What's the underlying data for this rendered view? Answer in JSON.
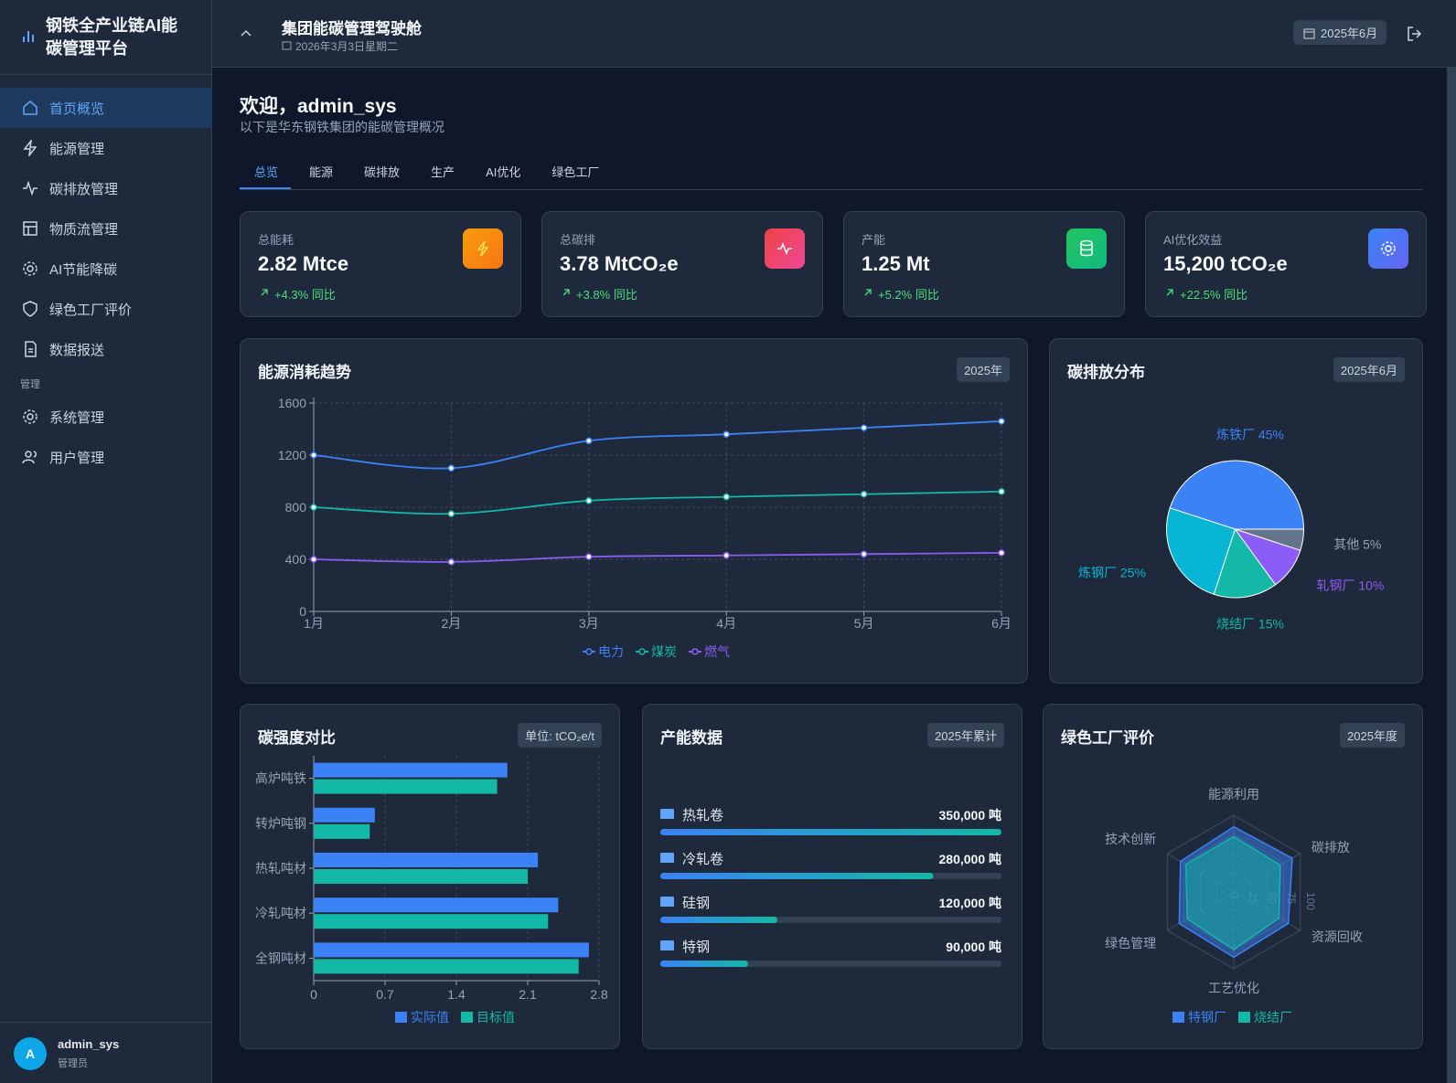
{
  "sidebar": {
    "brand": "钢铁全产业链AI能碳管理平台",
    "nav": [
      "首页概览",
      "能源管理",
      "碳排放管理",
      "物质流管理",
      "AI节能降碳",
      "绿色工厂评价",
      "数据报送"
    ],
    "section": "管理",
    "admin_nav": [
      "系统管理",
      "用户管理"
    ],
    "user": {
      "avatar": "A",
      "name": "admin_sys",
      "role": "管理员"
    }
  },
  "header": {
    "title": "集团能碳管理驾驶舱",
    "date": "2026年3月3日星期二",
    "period": "2025年6月"
  },
  "welcome": {
    "title": "欢迎，admin_sys",
    "subtitle": "以下是华东钢铁集团的能碳管理概况"
  },
  "tabs": [
    "总览",
    "能源",
    "碳排放",
    "生产",
    "AI优化",
    "绿色工厂"
  ],
  "kpis": [
    {
      "label": "总能耗",
      "value": "2.82 Mtce",
      "change": "+4.3% 同比"
    },
    {
      "label": "总碳排",
      "value": "3.78 MtCO₂e",
      "change": "+3.8% 同比"
    },
    {
      "label": "产能",
      "value": "1.25 Mt",
      "change": "+5.2% 同比"
    },
    {
      "label": "AI优化效益",
      "value": "15,200 tCO₂e",
      "change": "+22.5% 同比"
    }
  ],
  "chart_data": [
    {
      "type": "line",
      "title": "能源消耗趋势",
      "badge": "2025年",
      "categories": [
        "1月",
        "2月",
        "3月",
        "4月",
        "5月",
        "6月"
      ],
      "series": [
        {
          "name": "电力",
          "color": "#3b82f6",
          "values": [
            1200,
            1100,
            1310,
            1360,
            1410,
            1460
          ]
        },
        {
          "name": "煤炭",
          "color": "#14b8a6",
          "values": [
            800,
            750,
            850,
            880,
            900,
            920
          ]
        },
        {
          "name": "燃气",
          "color": "#8b5cf6",
          "values": [
            400,
            380,
            420,
            430,
            440,
            450
          ]
        }
      ],
      "ylim": [
        0,
        1600
      ],
      "yticks": [
        0,
        400,
        800,
        1200,
        1600
      ],
      "grid": true
    },
    {
      "type": "pie",
      "title": "碳排放分布",
      "badge": "2025年6月",
      "categories": [
        "炼铁厂",
        "炼钢厂",
        "烧结厂",
        "轧钢厂",
        "其他"
      ],
      "values": [
        45,
        25,
        15,
        10,
        5
      ],
      "value_labels": [
        "炼铁厂 45%",
        "炼钢厂 25%",
        "烧结厂 15%",
        "轧钢厂 10%",
        "其他 5%"
      ],
      "colors": [
        "#3b82f6",
        "#06b6d4",
        "#14b8a6",
        "#8b5cf6",
        "#64748b"
      ]
    },
    {
      "type": "hbar",
      "title": "碳强度对比",
      "badge": "单位: tCO₂e/t",
      "categories": [
        "高炉吨铁",
        "转炉吨钢",
        "热轧吨材",
        "冷轧吨材",
        "全钢吨材"
      ],
      "series": [
        {
          "name": "实际值",
          "color": "#3b82f6",
          "values": [
            1.9,
            0.6,
            2.2,
            2.4,
            2.7
          ]
        },
        {
          "name": "目标值",
          "color": "#14b8a6",
          "values": [
            1.8,
            0.55,
            2.1,
            2.3,
            2.6
          ]
        }
      ],
      "xlim": [
        0,
        2.8
      ],
      "xticks": [
        0,
        0.7,
        1.4,
        2.1,
        2.8
      ],
      "grid": true
    },
    {
      "type": "progress",
      "title": "产能数据",
      "badge": "2025年累计",
      "categories": [
        "热轧卷",
        "冷轧卷",
        "硅钢",
        "特钢"
      ],
      "values": [
        350000,
        280000,
        120000,
        90000
      ],
      "value_labels": [
        "350,000 吨",
        "280,000 吨",
        "120,000 吨",
        "90,000 吨"
      ],
      "xlim": [
        0,
        350000
      ]
    },
    {
      "type": "radar",
      "title": "绿色工厂评价",
      "badge": "2025年度",
      "categories": [
        "能源利用",
        "碳排放",
        "资源回收",
        "工艺优化",
        "绿色管理",
        "技术创新"
      ],
      "series": [
        {
          "name": "特钢厂",
          "color": "#3b82f6",
          "values": [
            85,
            88,
            82,
            85,
            82,
            80
          ]
        },
        {
          "name": "烧结厂",
          "color": "#14b8a6",
          "values": [
            72,
            70,
            68,
            75,
            70,
            72
          ]
        }
      ],
      "rlim": [
        0,
        100
      ],
      "rticks": [
        0,
        25,
        50,
        75,
        100
      ]
    }
  ]
}
